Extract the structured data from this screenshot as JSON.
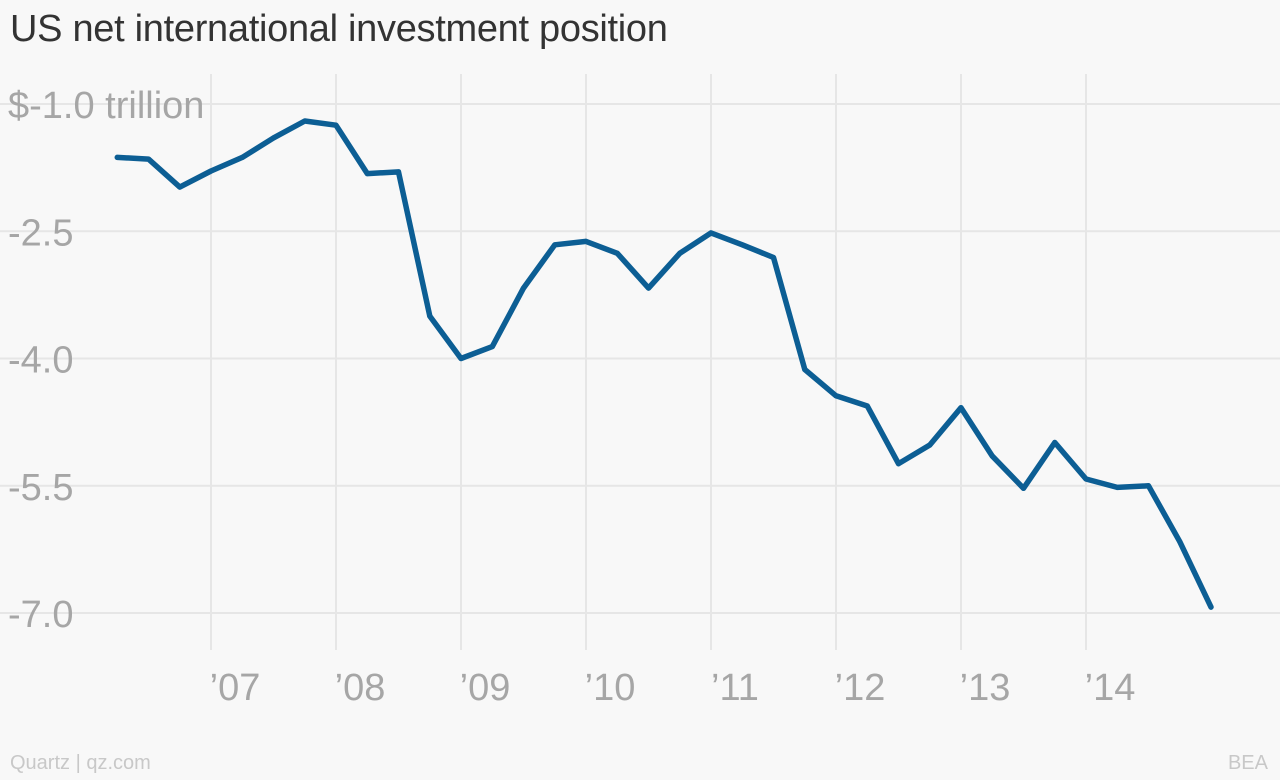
{
  "title": "US net international investment position",
  "footer": {
    "credit": "Quartz | qz.com",
    "source": "BEA"
  },
  "colors": {
    "line": "#0c5e94",
    "grid": "#e6e6e6",
    "tick_text": "#a6a6a6",
    "background": "#f8f8f8",
    "title": "#333333"
  },
  "chart_data": {
    "type": "line",
    "title": "US net international investment position",
    "xlabel": "",
    "ylabel": "",
    "y_unit": "trillion",
    "ylim": [
      -7.0,
      -1.0
    ],
    "xlim": [
      2006.0,
      2015.5
    ],
    "y_ticks": [
      {
        "value": -1.0,
        "label": "$-1.0 trillion"
      },
      {
        "value": -2.5,
        "label": "-2.5"
      },
      {
        "value": -4.0,
        "label": "-4.0"
      },
      {
        "value": -5.5,
        "label": "-5.5"
      },
      {
        "value": -7.0,
        "label": "-7.0"
      }
    ],
    "x_ticks": [
      {
        "value": 2007,
        "label": "’07"
      },
      {
        "value": 2008,
        "label": "’08"
      },
      {
        "value": 2009,
        "label": "’09"
      },
      {
        "value": 2010,
        "label": "’10"
      },
      {
        "value": 2011,
        "label": "’11"
      },
      {
        "value": 2012,
        "label": "’12"
      },
      {
        "value": 2013,
        "label": "’13"
      },
      {
        "value": 2014,
        "label": "’14"
      }
    ],
    "grid": true,
    "legend": "none",
    "series": [
      {
        "x": [
          2006.25,
          2006.5,
          2006.75,
          2007.0,
          2007.25,
          2007.5,
          2007.75,
          2008.0,
          2008.25,
          2008.5,
          2008.75,
          2009.0,
          2009.25,
          2009.5,
          2009.75,
          2010.0,
          2010.25,
          2010.5,
          2010.75,
          2011.0,
          2011.25,
          2011.5,
          2011.75,
          2012.0,
          2012.25,
          2012.5,
          2012.75,
          2013.0,
          2013.25,
          2013.5,
          2013.75,
          2014.0,
          2014.25,
          2014.5,
          2014.75,
          2015.0
        ],
        "y": [
          -1.63,
          -1.65,
          -1.98,
          -1.79,
          -1.63,
          -1.4,
          -1.2,
          -1.25,
          -1.82,
          -1.8,
          -3.5,
          -4.0,
          -3.86,
          -3.17,
          -2.66,
          -2.62,
          -2.76,
          -3.17,
          -2.76,
          -2.52,
          -2.66,
          -2.81,
          -4.13,
          -4.44,
          -4.56,
          -5.24,
          -5.02,
          -4.58,
          -5.15,
          -5.53,
          -4.99,
          -5.42,
          -5.52,
          -5.5,
          -6.16,
          -6.93
        ]
      }
    ]
  }
}
